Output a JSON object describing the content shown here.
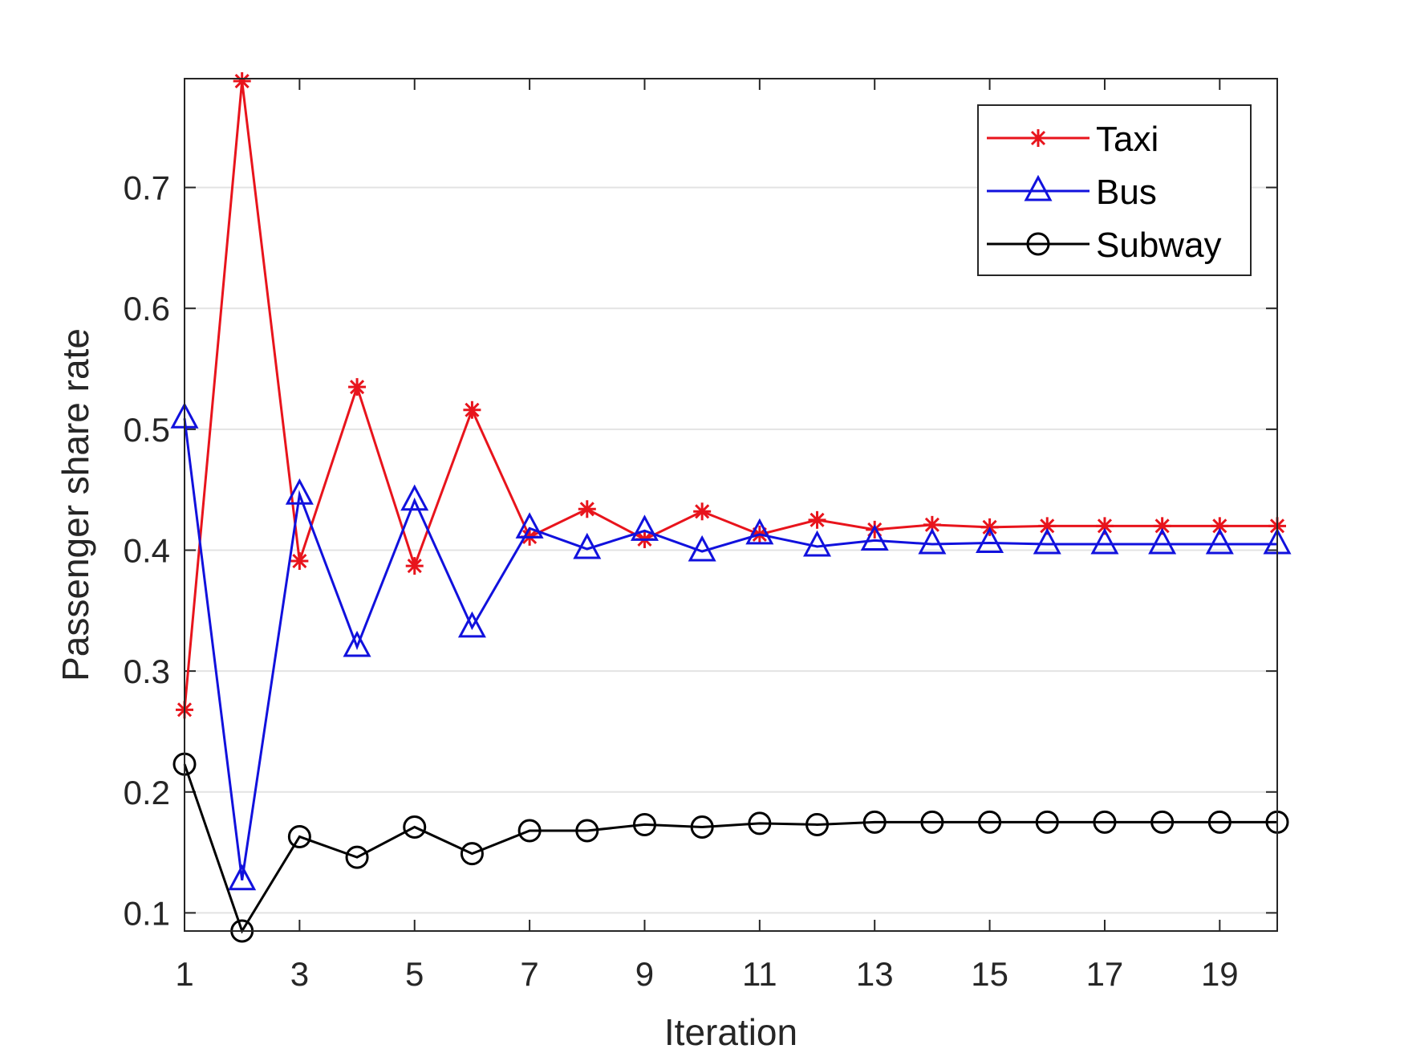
{
  "chart_data": {
    "type": "line",
    "title": "",
    "xlabel": "Iteration",
    "ylabel": "Passenger share rate",
    "xlim": [
      1,
      20
    ],
    "ylim": [
      0.085,
      0.79
    ],
    "xticks": [
      1,
      3,
      5,
      7,
      9,
      11,
      13,
      15,
      17,
      19
    ],
    "yticks": [
      0.1,
      0.2,
      0.3,
      0.4,
      0.5,
      0.6,
      0.7
    ],
    "ytick_labels": [
      "0.1",
      "0.2",
      "0.3",
      "0.4",
      "0.5",
      "0.6",
      "0.7"
    ],
    "grid": "horizontal",
    "legend_position": "top-right",
    "x": [
      1,
      2,
      3,
      4,
      5,
      6,
      7,
      8,
      9,
      10,
      11,
      12,
      13,
      14,
      15,
      16,
      17,
      18,
      19,
      20
    ],
    "series": [
      {
        "name": "Taxi",
        "color": "#e8141c",
        "marker": "asterisk",
        "values": [
          0.268,
          0.788,
          0.391,
          0.535,
          0.387,
          0.516,
          0.411,
          0.434,
          0.409,
          0.432,
          0.413,
          0.425,
          0.417,
          0.421,
          0.419,
          0.42,
          0.42,
          0.42,
          0.42,
          0.42
        ]
      },
      {
        "name": "Bus",
        "color": "#1111dd",
        "marker": "triangle",
        "values": [
          0.509,
          0.127,
          0.446,
          0.32,
          0.441,
          0.336,
          0.418,
          0.401,
          0.416,
          0.399,
          0.413,
          0.403,
          0.408,
          0.405,
          0.406,
          0.405,
          0.405,
          0.405,
          0.405,
          0.405
        ]
      },
      {
        "name": "Subway",
        "color": "#000000",
        "marker": "circle",
        "values": [
          0.223,
          0.085,
          0.163,
          0.146,
          0.171,
          0.149,
          0.168,
          0.168,
          0.173,
          0.171,
          0.174,
          0.173,
          0.175,
          0.175,
          0.175,
          0.175,
          0.175,
          0.175,
          0.175,
          0.175
        ]
      }
    ]
  }
}
